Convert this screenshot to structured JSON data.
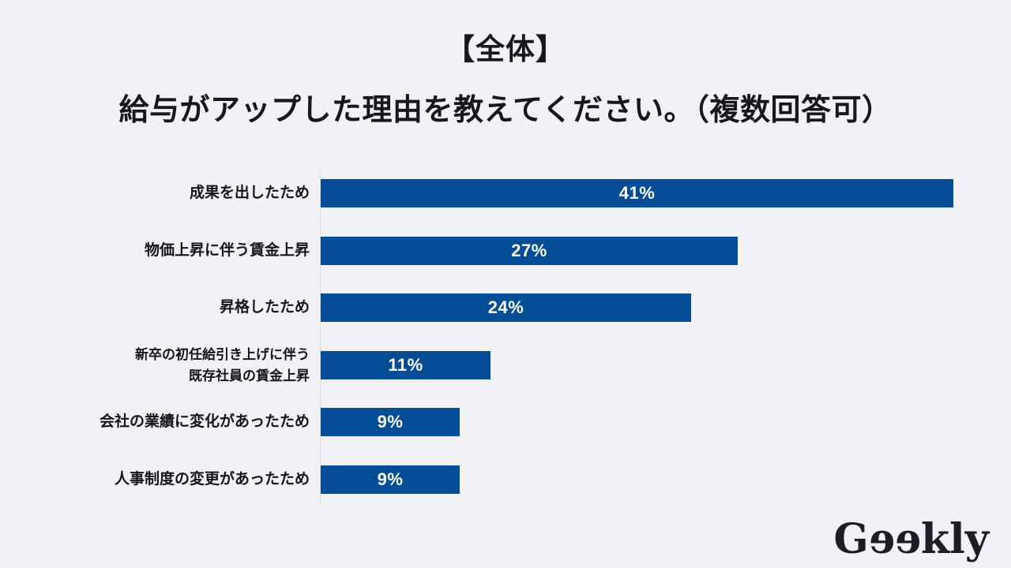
{
  "page": {
    "background": "#f0f2f6"
  },
  "header": {
    "title_line1": "【全体】",
    "title_line2": "給与がアップした理由を教えてください。（複数回答可）"
  },
  "chart_data": {
    "type": "bar",
    "orientation": "horizontal",
    "title": "給与がアップした理由を教えてください。（複数回答可）",
    "group": "全体",
    "categories": [
      "成果を出したため",
      "物価上昇に伴う賃金上昇",
      "昇格したため",
      "新卒の初任給引き上げに伴う\n既存社員の賃金上昇",
      "会社の業績に変化があったため",
      "人事制度の変更があったため"
    ],
    "values": [
      41,
      27,
      24,
      11,
      9,
      9
    ],
    "unit": "%",
    "value_labels": [
      "41%",
      "27%",
      "24%",
      "11%",
      "9%",
      "9%"
    ],
    "xlim": [
      0,
      42
    ],
    "grid": false,
    "legend": "none",
    "bar_color": "#034d96",
    "value_label_color": "#ffffff",
    "axis_line_color": "#d9dce1"
  },
  "logo": {
    "text": "Geekly"
  }
}
